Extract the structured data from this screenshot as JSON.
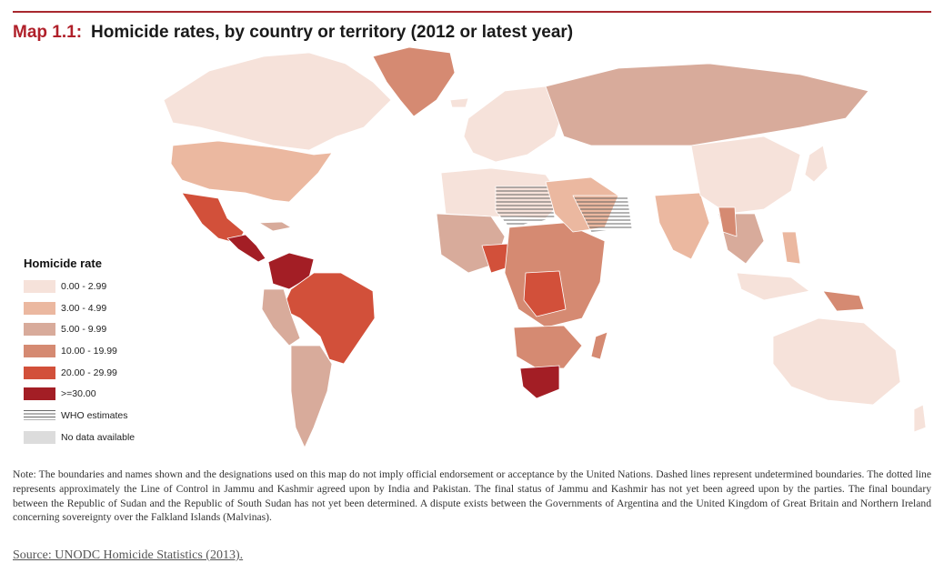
{
  "title": {
    "number": "Map 1.1:",
    "text": "Homicide rates, by country or territory (2012 or latest year)"
  },
  "legend": {
    "title": "Homicide rate",
    "items": [
      {
        "label": "0.00 - 2.99",
        "color": "#f6e2da"
      },
      {
        "label": "3.00 - 4.99",
        "color": "#ebb8a0"
      },
      {
        "label": "5.00 - 9.99",
        "color": "#d8ab9b"
      },
      {
        "label": "10.00 - 19.99",
        "color": "#d58a72"
      },
      {
        "label": "20.00 - 29.99",
        "color": "#d2503a"
      },
      {
        "label": ">=30.00",
        "color": "#a31e25"
      }
    ],
    "who_label": "WHO estimates",
    "nodata_label": "No data available",
    "nodata_color": "#dcdcdc"
  },
  "note": "Note: The boundaries and names shown and the designations used on this map do not imply official endorsement or acceptance by the United Nations. Dashed lines represent undetermined boundaries. The dotted line represents approximately the Line of Control in Jammu and Kashmir agreed upon by India and Pakistan. The final status of Jammu and Kashmir has not yet been agreed upon by the parties. The final boundary between the Republic of Sudan and the Republic of South Sudan has not yet been determined. A dispute exists between the Governments of Argentina and the United Kingdom of Great Britain and Northern Ireland concerning sovereignty over the Falkland Islands (Malvinas).",
  "source": "Source: UNODC Homicide Statistics (2013)."
}
